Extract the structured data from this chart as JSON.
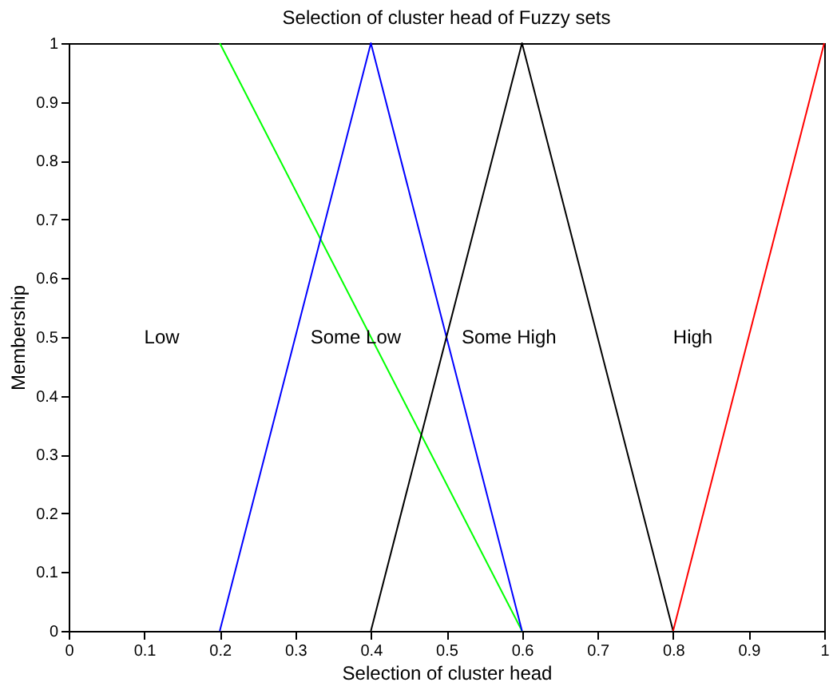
{
  "chart_data": {
    "type": "line",
    "title": "Selection of cluster head of Fuzzy sets",
    "xlabel": "Selection of cluster head",
    "ylabel": "Membership",
    "series": [
      {
        "color": "#00ff00",
        "x": [
          0.2,
          0.6
        ],
        "values": [
          1,
          0
        ]
      },
      {
        "color": "#0000ff",
        "x": [
          0.2,
          0.4,
          0.6
        ],
        "values": [
          0,
          1,
          0
        ]
      },
      {
        "color": "#000000",
        "x": [
          0.4,
          0.6,
          0.8
        ],
        "values": [
          0,
          1,
          0
        ]
      },
      {
        "color": "#ff0000",
        "x": [
          0.8,
          1.0
        ],
        "values": [
          0,
          1
        ]
      }
    ],
    "annotations": [
      "Low",
      "Some Low",
      "Some High",
      "High"
    ],
    "xlim": [
      0,
      1
    ],
    "ylim": [
      0,
      1
    ],
    "xticks": [
      0,
      0.1,
      0.2,
      0.3,
      0.4,
      0.5,
      0.6,
      0.7,
      0.8,
      0.9,
      1
    ],
    "yticks": [
      0,
      0.1,
      0.2,
      0.3,
      0.4,
      0.5,
      0.6,
      0.7,
      0.8,
      0.9,
      1
    ],
    "grid": false,
    "marker": "none",
    "line_style": "solid"
  }
}
